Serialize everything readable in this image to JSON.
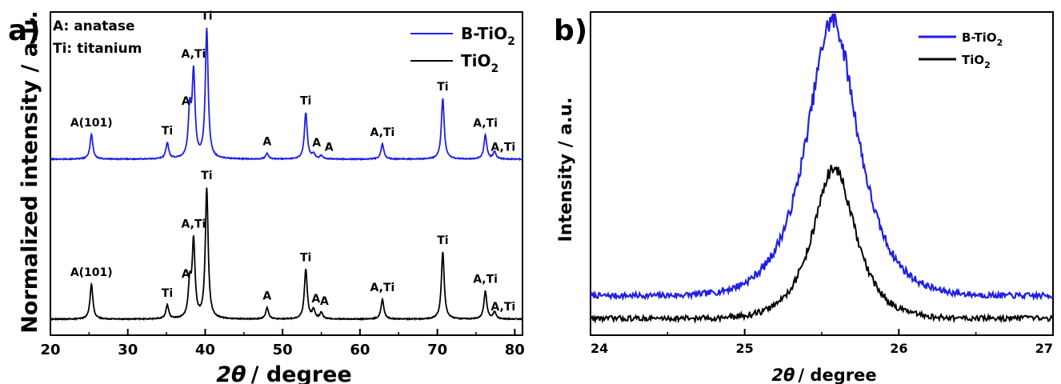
{
  "colors": {
    "blue": "#1f1fe6",
    "black": "#000000",
    "axis": "#000000"
  },
  "chart_data": [
    {
      "type": "line",
      "panel_label": "a)",
      "xlabel": {
        "theta": "2θ",
        "rest": "/ degree"
      },
      "ylabel": "Normalized intensity / a.u.",
      "xlim": [
        20,
        81
      ],
      "xticks": [
        "20",
        "30",
        "40",
        "50",
        "60",
        "70",
        "80"
      ],
      "yticks": [],
      "phase_key": [
        "A: anatase",
        "Ti: titanium"
      ],
      "legend": [
        {
          "label": "B-TiO",
          "sub": "2",
          "color": "blue"
        },
        {
          "label": "TiO",
          "sub": "2",
          "color": "black"
        }
      ],
      "series": [
        {
          "name": "B-TiO2",
          "color": "blue",
          "baseline": 1.0,
          "peaks": [
            {
              "x": 25.3,
              "h": 0.31
            },
            {
              "x": 35.1,
              "h": 0.2
            },
            {
              "x": 38.0,
              "h": 0.58
            },
            {
              "x": 38.5,
              "h": 1.05
            },
            {
              "x": 40.2,
              "h": 1.62
            },
            {
              "x": 48.0,
              "h": 0.07
            },
            {
              "x": 53.0,
              "h": 0.58
            },
            {
              "x": 54.0,
              "h": 0.06
            },
            {
              "x": 55.0,
              "h": 0.04
            },
            {
              "x": 62.9,
              "h": 0.19
            },
            {
              "x": 70.7,
              "h": 0.76
            },
            {
              "x": 76.2,
              "h": 0.3
            },
            {
              "x": 77.4,
              "h": 0.09
            }
          ]
        },
        {
          "name": "TiO2",
          "color": "black",
          "baseline": 0.0,
          "peaks": [
            {
              "x": 25.3,
              "h": 0.44
            },
            {
              "x": 35.1,
              "h": 0.17
            },
            {
              "x": 38.0,
              "h": 0.42
            },
            {
              "x": 38.5,
              "h": 0.95
            },
            {
              "x": 40.2,
              "h": 1.63
            },
            {
              "x": 48.0,
              "h": 0.14
            },
            {
              "x": 53.0,
              "h": 0.62
            },
            {
              "x": 54.0,
              "h": 0.11
            },
            {
              "x": 55.0,
              "h": 0.08
            },
            {
              "x": 62.9,
              "h": 0.25
            },
            {
              "x": 70.7,
              "h": 0.84
            },
            {
              "x": 76.2,
              "h": 0.35
            },
            {
              "x": 77.4,
              "h": 0.09
            }
          ]
        }
      ],
      "annotations": [
        {
          "text": "A(101)",
          "x": 25.3,
          "series": 0
        },
        {
          "text": "Ti",
          "x": 35.1,
          "series": 0
        },
        {
          "text": "A",
          "x": 37.5,
          "series": 0
        },
        {
          "text": "A,Ti",
          "x": 38.5,
          "series": 0
        },
        {
          "text": "Ti",
          "x": 40.2,
          "series": 0
        },
        {
          "text": "A",
          "x": 48.0,
          "series": 0
        },
        {
          "text": "Ti",
          "x": 53.0,
          "series": 0
        },
        {
          "text": "A",
          "x": 54.4,
          "series": 0
        },
        {
          "text": "A",
          "x": 56.0,
          "series": 0
        },
        {
          "text": "A,Ti",
          "x": 62.9,
          "series": 0
        },
        {
          "text": "Ti",
          "x": 70.7,
          "series": 0
        },
        {
          "text": "A,Ti",
          "x": 76.2,
          "series": 0
        },
        {
          "text": "A,Ti",
          "x": 78.5,
          "series": 0
        },
        {
          "text": "A(101)",
          "x": 25.3,
          "series": 1
        },
        {
          "text": "Ti",
          "x": 35.1,
          "series": 1
        },
        {
          "text": "A",
          "x": 37.5,
          "series": 1
        },
        {
          "text": "A,Ti",
          "x": 38.5,
          "series": 1
        },
        {
          "text": "Ti",
          "x": 40.2,
          "series": 1
        },
        {
          "text": "A",
          "x": 48.0,
          "series": 1
        },
        {
          "text": "Ti",
          "x": 53.0,
          "series": 1
        },
        {
          "text": "A",
          "x": 54.3,
          "series": 1
        },
        {
          "text": "A",
          "x": 55.4,
          "series": 1
        },
        {
          "text": "A,Ti",
          "x": 62.9,
          "series": 1
        },
        {
          "text": "Ti",
          "x": 70.7,
          "series": 1
        },
        {
          "text": "A,Ti",
          "x": 76.2,
          "series": 1
        },
        {
          "text": "A,Ti",
          "x": 78.5,
          "series": 1
        }
      ]
    },
    {
      "type": "line",
      "panel_label": "b)",
      "xlabel": {
        "theta": "2θ",
        "rest": "/ degree"
      },
      "ylabel": "Intensity / a.u.",
      "xlim": [
        24,
        27
      ],
      "xticks": [
        "24",
        "25",
        "26",
        "27"
      ],
      "yticks": [],
      "legend": [
        {
          "label": "B-TiO",
          "sub": "2",
          "color": "blue"
        },
        {
          "label": "TiO",
          "sub": "2",
          "color": "black"
        }
      ],
      "series": [
        {
          "name": "B-TiO2",
          "color": "blue",
          "center": 25.57,
          "peak": 1.0,
          "background": 0.03,
          "width": 0.22
        },
        {
          "name": "TiO2",
          "color": "black",
          "center": 25.58,
          "peak": 0.53,
          "background": 0.0,
          "width": 0.18
        }
      ]
    }
  ]
}
